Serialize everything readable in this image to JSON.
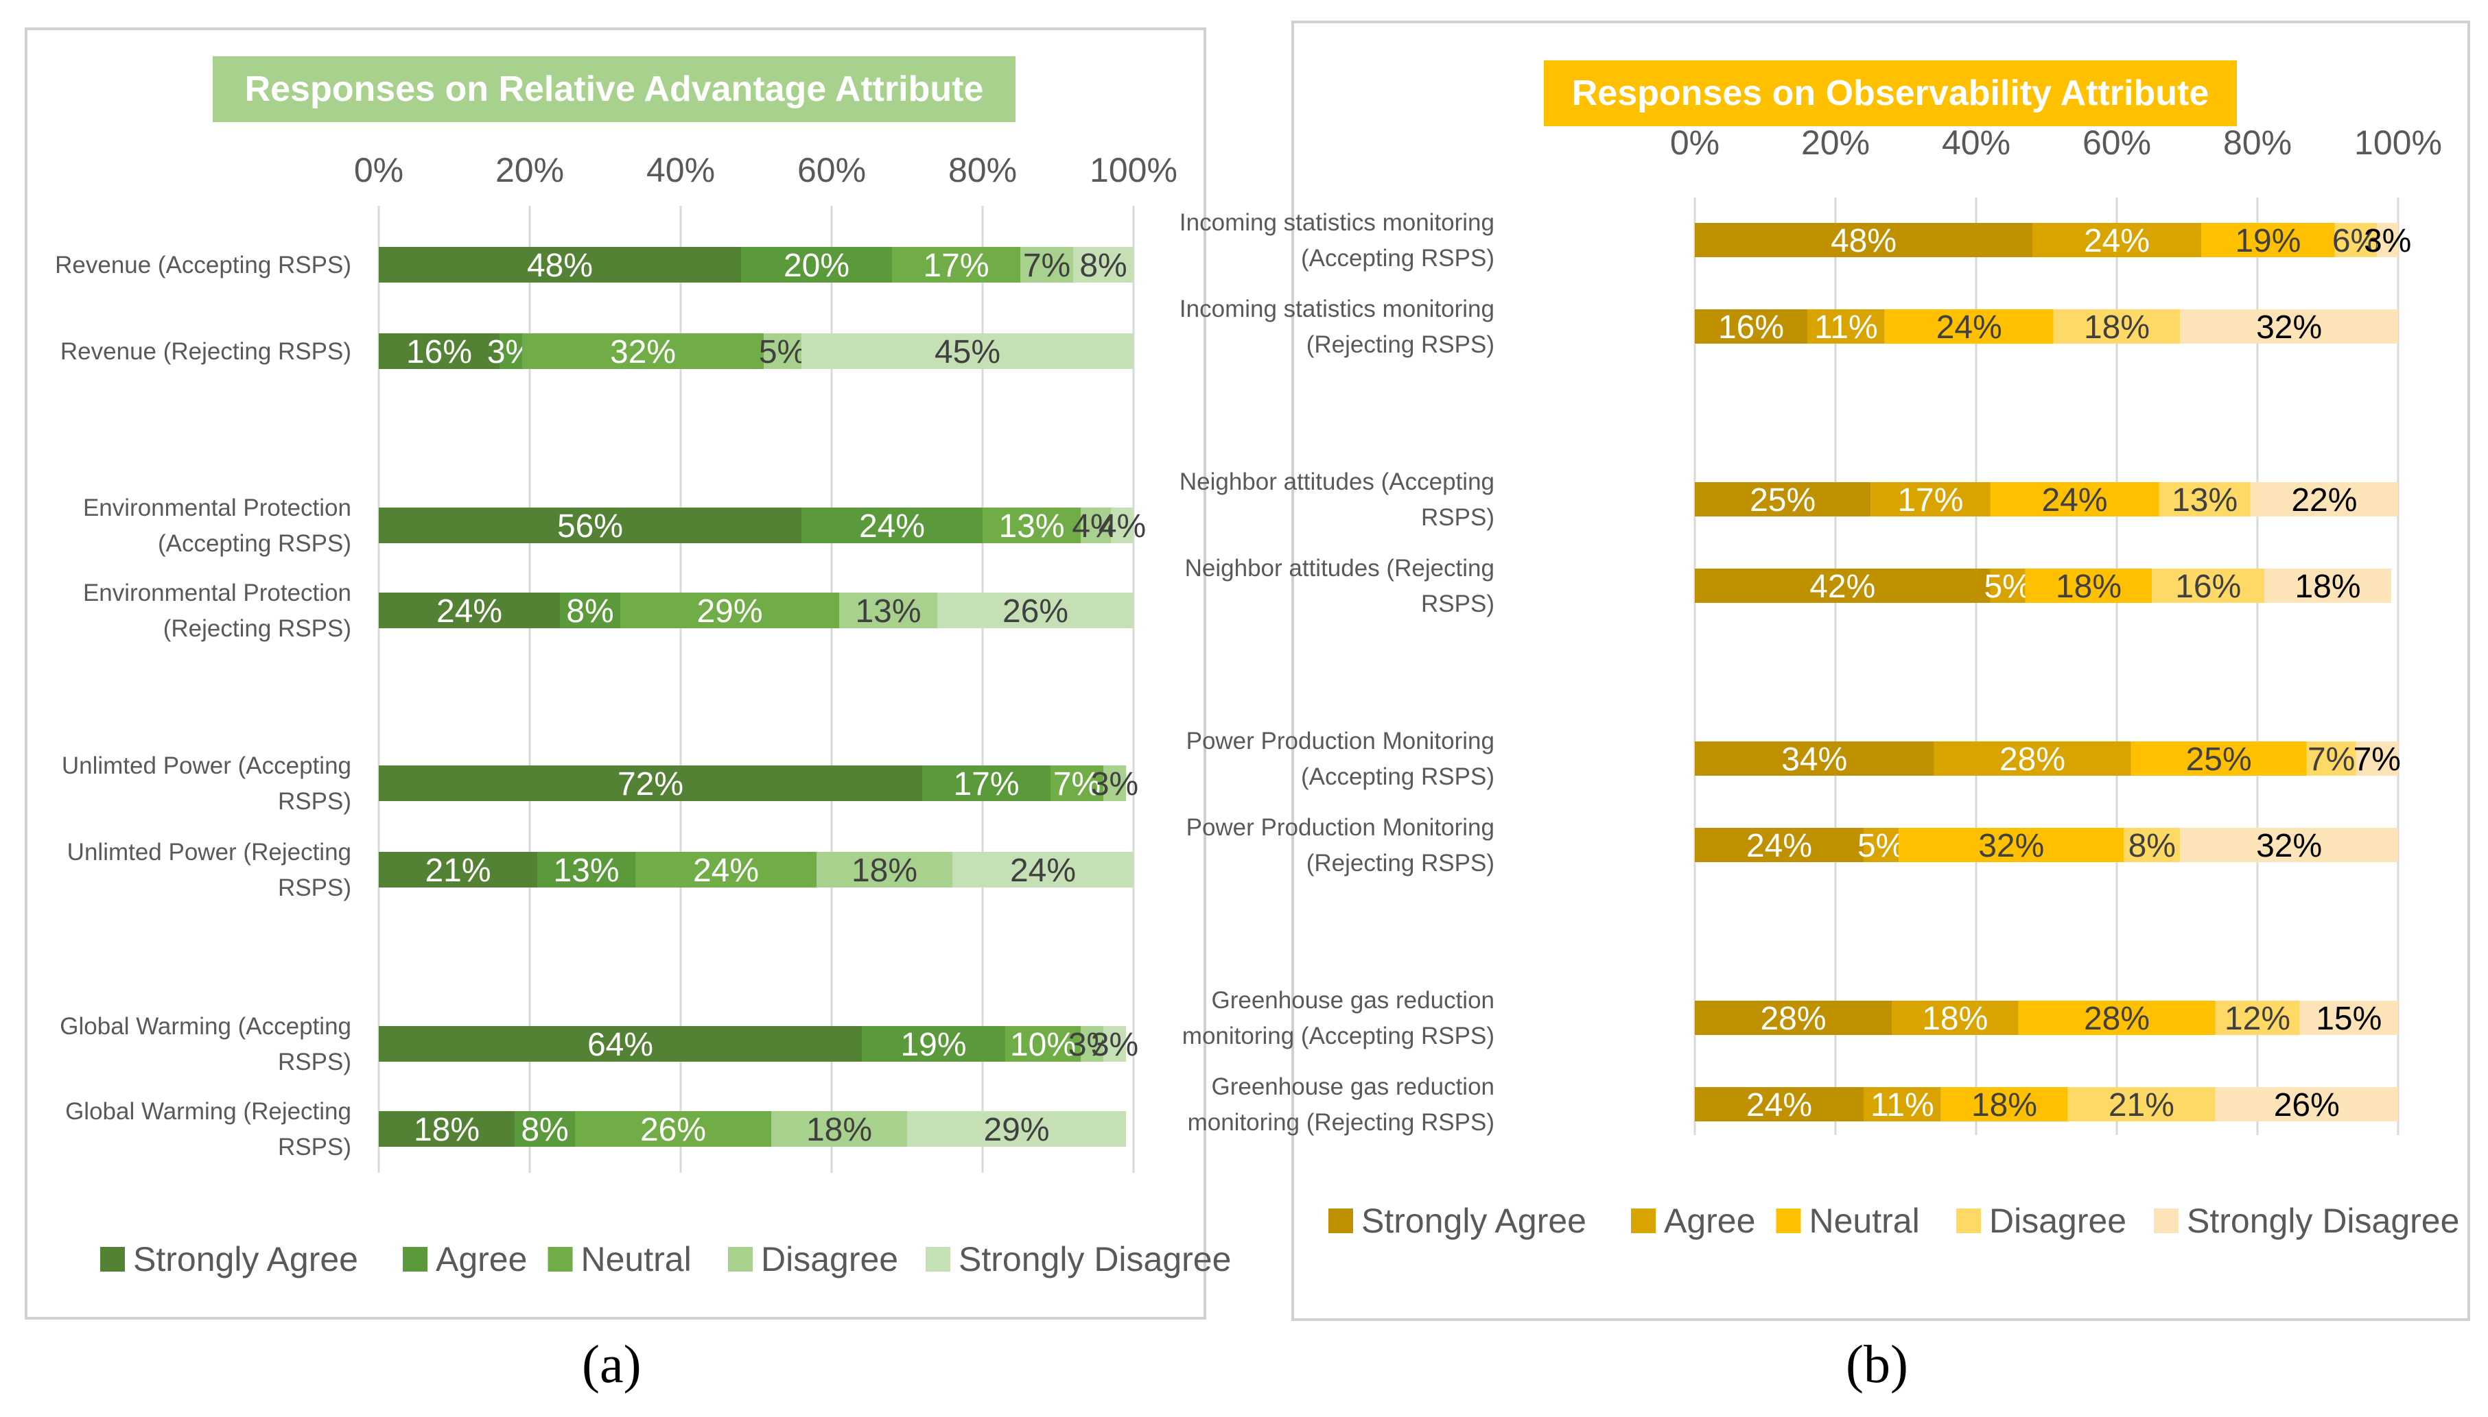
{
  "captions": {
    "a": "(a)",
    "b": "(b)"
  },
  "legend_labels": [
    "Strongly Agree",
    "Agree",
    "Neutral",
    "Disagree",
    "Strongly Disagree"
  ],
  "colors": {
    "a": [
      "#548235",
      "#5a9a3a",
      "#70ad47",
      "#a9d18e",
      "#c5e0b4"
    ],
    "b": [
      "#bf9000",
      "#d9a400",
      "#ffc000",
      "#ffd966",
      "#fde3b8"
    ],
    "label_a": [
      "#ffffff",
      "#ffffff",
      "#ffffff",
      "#404040",
      "#404040"
    ],
    "label_b": [
      "#ffffff",
      "#ffffff",
      "#404040",
      "#404040",
      "#000000"
    ]
  },
  "chart_data": [
    {
      "type": "bar",
      "orientation": "horizontal-stacked-percent",
      "title": "Responses on Relative Advantage Attribute",
      "xlim": [
        0,
        100
      ],
      "ticks": [
        "0%",
        "20%",
        "40%",
        "60%",
        "80%",
        "100%"
      ],
      "categories": [
        [
          "Revenue (Accepting RSPS)"
        ],
        [
          "Revenue (Rejecting RSPS)"
        ],
        [
          "Environmental Protection",
          "(Accepting RSPS)"
        ],
        [
          "Environmental Protection",
          "(Rejecting RSPS)"
        ],
        [
          "Unlimted Power (Accepting",
          "RSPS)"
        ],
        [
          "Unlimted Power (Rejecting",
          "RSPS)"
        ],
        [
          "Global Warming (Accepting",
          "RSPS)"
        ],
        [
          "Global Warming (Rejecting",
          "RSPS)"
        ]
      ],
      "series": [
        {
          "name": "Strongly Agree",
          "values": [
            48,
            16,
            56,
            24,
            72,
            21,
            64,
            18
          ]
        },
        {
          "name": "Agree",
          "values": [
            20,
            3,
            24,
            8,
            17,
            13,
            19,
            8
          ]
        },
        {
          "name": "Neutral",
          "values": [
            17,
            32,
            13,
            29,
            7,
            24,
            10,
            26
          ]
        },
        {
          "name": "Disagree",
          "values": [
            7,
            5,
            4,
            13,
            3,
            18,
            3,
            18
          ]
        },
        {
          "name": "Strongly Disagree",
          "values": [
            8,
            45,
            4,
            26,
            0,
            24,
            3,
            29
          ]
        }
      ],
      "legend": "bottom"
    },
    {
      "type": "bar",
      "orientation": "horizontal-stacked-percent",
      "title": "Responses on Observability Attribute",
      "xlim": [
        0,
        100
      ],
      "ticks": [
        "0%",
        "20%",
        "40%",
        "60%",
        "80%",
        "100%"
      ],
      "categories": [
        [
          "Incoming statistics monitoring",
          "(Accepting RSPS)"
        ],
        [
          "Incoming statistics monitoring",
          "(Rejecting RSPS)"
        ],
        [
          "Neighbor attitudes (Accepting",
          "RSPS)"
        ],
        [
          "Neighbor attitudes (Rejecting",
          "RSPS)"
        ],
        [
          "Power Production Monitoring",
          "(Accepting RSPS)"
        ],
        [
          "Power Production Monitoring",
          "(Rejecting RSPS)"
        ],
        [
          "Greenhouse gas reduction",
          "monitoring (Accepting RSPS)"
        ],
        [
          "Greenhouse gas reduction",
          "monitoring (Rejecting RSPS)"
        ]
      ],
      "series": [
        {
          "name": "Strongly Agree",
          "values": [
            48,
            16,
            25,
            42,
            34,
            24,
            28,
            24
          ]
        },
        {
          "name": "Agree",
          "values": [
            24,
            11,
            17,
            5,
            28,
            5,
            18,
            11
          ]
        },
        {
          "name": "Neutral",
          "values": [
            19,
            24,
            24,
            18,
            25,
            32,
            28,
            18
          ]
        },
        {
          "name": "Disagree",
          "values": [
            6,
            18,
            13,
            16,
            7,
            8,
            12,
            21
          ]
        },
        {
          "name": "Strongly Disagree",
          "values": [
            3,
            32,
            22,
            18,
            7,
            32,
            15,
            26
          ]
        }
      ],
      "legend": "bottom"
    }
  ]
}
